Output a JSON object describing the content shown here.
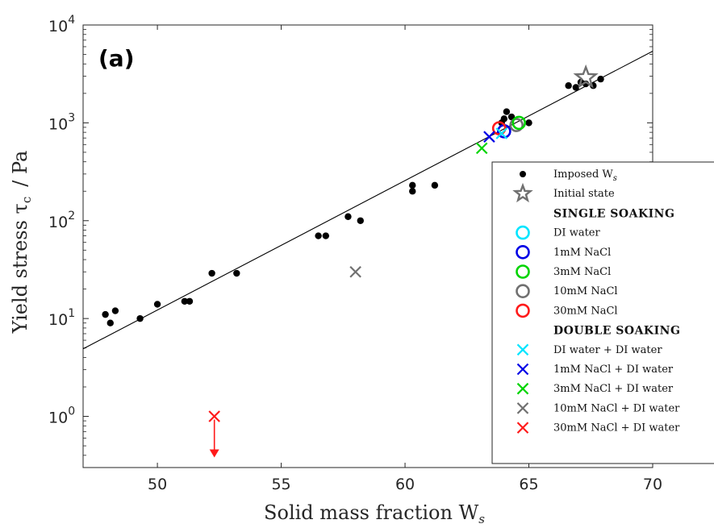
{
  "chart_data": {
    "type": "scatter",
    "panel_label": "(a)",
    "xlabel": "Solid mass fraction W",
    "xlabel_sub": "s",
    "ylabel": "Yield stress τ",
    "ylabel_sub": "c",
    "ylabel_unit": "/  Pa",
    "xlim": [
      47,
      70
    ],
    "ylim": [
      0.3,
      10000
    ],
    "yscale": "log",
    "xticks": [
      50,
      55,
      60,
      65,
      70
    ],
    "yticks": [
      {
        "value": 1,
        "base": "10",
        "exp": "0"
      },
      {
        "value": 10,
        "base": "10",
        "exp": "1"
      },
      {
        "value": 100,
        "base": "10",
        "exp": "2"
      },
      {
        "value": 1000,
        "base": "10",
        "exp": "3"
      },
      {
        "value": 10000,
        "base": "10",
        "exp": "4"
      }
    ],
    "grid": false,
    "legend_position": "right",
    "fit_line": {
      "x": [
        47,
        70
      ],
      "y": [
        4.9,
        5400
      ],
      "color": "#000000"
    },
    "series": [
      {
        "name": "Imposed W",
        "name_sub": "s",
        "marker": "dot",
        "color": "#000000",
        "points": [
          [
            47.9,
            11
          ],
          [
            48.1,
            9
          ],
          [
            48.3,
            12
          ],
          [
            49.3,
            10
          ],
          [
            50.0,
            14
          ],
          [
            51.1,
            15
          ],
          [
            51.3,
            15
          ],
          [
            52.2,
            29
          ],
          [
            53.2,
            29
          ],
          [
            56.5,
            70
          ],
          [
            56.8,
            70
          ],
          [
            57.7,
            110
          ],
          [
            58.2,
            100
          ],
          [
            60.3,
            200
          ],
          [
            60.3,
            230
          ],
          [
            61.2,
            230
          ],
          [
            63.9,
            1000
          ],
          [
            64.0,
            1100
          ],
          [
            64.1,
            1300
          ],
          [
            64.3,
            1150
          ],
          [
            65.0,
            1000
          ],
          [
            66.6,
            2400
          ],
          [
            66.9,
            2300
          ],
          [
            67.1,
            2600
          ],
          [
            67.3,
            2500
          ],
          [
            67.6,
            2400
          ],
          [
            67.9,
            2800
          ]
        ]
      },
      {
        "name": "Initial state",
        "marker": "star",
        "color": "#707070",
        "points": [
          [
            67.3,
            2900
          ]
        ]
      },
      {
        "name": "DI water",
        "marker": "circle",
        "color": "#00e5ff",
        "group": "SINGLE SOAKING",
        "points": []
      },
      {
        "name": "1mM NaCl",
        "marker": "circle",
        "color": "#0000e6",
        "group": "SINGLE SOAKING",
        "points": [
          [
            64.0,
            820
          ]
        ]
      },
      {
        "name": "3mM NaCl",
        "marker": "circle",
        "color": "#00d400",
        "group": "SINGLE SOAKING",
        "points": [
          [
            64.6,
            1000
          ]
        ]
      },
      {
        "name": "10mM NaCl",
        "marker": "circle",
        "color": "#707070",
        "group": "SINGLE SOAKING",
        "points": [
          [
            64.5,
            950
          ]
        ]
      },
      {
        "name": "30mM NaCl",
        "marker": "circle",
        "color": "#ff1a1a",
        "group": "SINGLE SOAKING",
        "points": [
          [
            63.8,
            880
          ]
        ]
      },
      {
        "name": "DI water + DI water",
        "marker": "x",
        "color": "#00e5ff",
        "group": "DOUBLE SOAKING",
        "points": [
          [
            63.9,
            780
          ]
        ]
      },
      {
        "name": "1mM NaCl + DI water",
        "marker": "x",
        "color": "#0000e6",
        "group": "DOUBLE SOAKING",
        "points": [
          [
            63.4,
            720
          ]
        ]
      },
      {
        "name": "3mM NaCl + DI water",
        "marker": "x",
        "color": "#00d400",
        "group": "DOUBLE SOAKING",
        "points": [
          [
            63.1,
            550
          ]
        ]
      },
      {
        "name": "10mM NaCl + DI water",
        "marker": "x",
        "color": "#707070",
        "group": "DOUBLE SOAKING",
        "points": [
          [
            58.0,
            30
          ]
        ]
      },
      {
        "name": "30mM NaCl + DI water",
        "marker": "x",
        "color": "#ff1a1a",
        "group": "DOUBLE SOAKING",
        "points": [
          [
            52.3,
            1.0
          ]
        ],
        "arrow_to": 0.38
      }
    ],
    "legend_groups": [
      "SINGLE SOAKING",
      "DOUBLE   SOAKING"
    ]
  }
}
